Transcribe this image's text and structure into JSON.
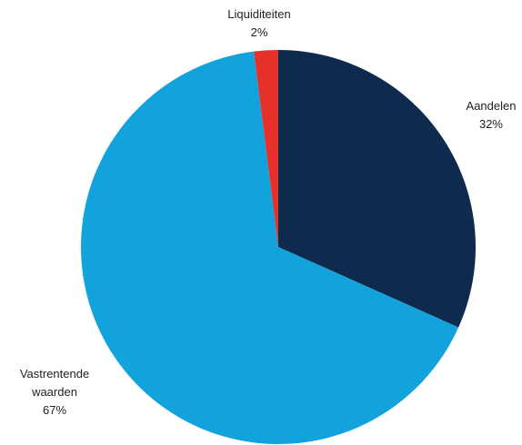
{
  "chart_data": {
    "type": "pie",
    "categories": [
      "Aandelen",
      "Vastrentende waarden",
      "Liquiditeiten"
    ],
    "values": [
      32,
      67,
      2
    ],
    "value_labels": [
      "32%",
      "67%",
      "2%"
    ],
    "colors": [
      "#0e2a4e",
      "#13a3dc",
      "#e8302a"
    ]
  }
}
